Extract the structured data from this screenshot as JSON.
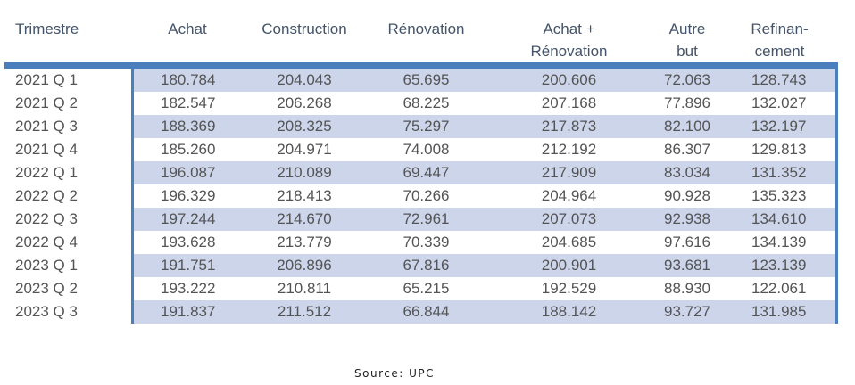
{
  "colors": {
    "accent": "#4A7EBC",
    "row_shade": "#CCD5EA",
    "header_text": "#44546A",
    "data_text": "#545454"
  },
  "table": {
    "headers": [
      {
        "line1": "Trimestre",
        "line2": ""
      },
      {
        "line1": "Achat",
        "line2": ""
      },
      {
        "line1": "Construction",
        "line2": ""
      },
      {
        "line1": "Rénovation",
        "line2": ""
      },
      {
        "line1": "Achat +",
        "line2": "Rénovation"
      },
      {
        "line1": "Autre",
        "line2": "but"
      },
      {
        "line1": "Refinan-",
        "line2": "cement"
      }
    ],
    "rows": [
      [
        "2021 Q 1",
        "180.784",
        "204.043",
        "65.695",
        "200.606",
        "72.063",
        "128.743"
      ],
      [
        "2021 Q 2",
        "182.547",
        "206.268",
        "68.225",
        "207.168",
        "77.896",
        "132.027"
      ],
      [
        "2021 Q 3",
        "188.369",
        "208.325",
        "75.297",
        "217.873",
        "82.100",
        "132.197"
      ],
      [
        "2021 Q 4",
        "185.260",
        "204.971",
        "74.008",
        "212.192",
        "86.307",
        "129.813"
      ],
      [
        "2022 Q 1",
        "196.087",
        "210.089",
        "69.447",
        "217.909",
        "83.034",
        "131.352"
      ],
      [
        "2022 Q 2",
        "196.329",
        "218.413",
        "70.266",
        "204.964",
        "90.928",
        "135.323"
      ],
      [
        "2022 Q 3",
        "197.244",
        "214.670",
        "72.961",
        "207.073",
        "92.938",
        "134.610"
      ],
      [
        "2022 Q 4",
        "193.628",
        "213.779",
        "70.339",
        "204.685",
        "97.616",
        "134.139"
      ],
      [
        "2023 Q 1",
        "191.751",
        "206.896",
        "67.816",
        "200.901",
        "93.681",
        "123.139"
      ],
      [
        "2023 Q 2",
        "193.222",
        "210.811",
        "65.215",
        "192.529",
        "88.930",
        "122.061"
      ],
      [
        "2023 Q 3",
        "191.837",
        "211.512",
        "66.844",
        "188.142",
        "93.727",
        "131.985"
      ]
    ]
  },
  "footer": {
    "source_label": "Source: UPC"
  },
  "chart_data": {
    "type": "table",
    "title": "",
    "categories": [
      "2021 Q 1",
      "2021 Q 2",
      "2021 Q 3",
      "2021 Q 4",
      "2022 Q 1",
      "2022 Q 2",
      "2022 Q 3",
      "2022 Q 4",
      "2023 Q 1",
      "2023 Q 2",
      "2023 Q 3"
    ],
    "series": [
      {
        "name": "Achat",
        "values": [
          180.784,
          182.547,
          188.369,
          185.26,
          196.087,
          196.329,
          197.244,
          193.628,
          191.751,
          193.222,
          191.837
        ]
      },
      {
        "name": "Construction",
        "values": [
          204.043,
          206.268,
          208.325,
          204.971,
          210.089,
          218.413,
          214.67,
          213.779,
          206.896,
          210.811,
          211.512
        ]
      },
      {
        "name": "Rénovation",
        "values": [
          65.695,
          68.225,
          75.297,
          74.008,
          69.447,
          70.266,
          72.961,
          70.339,
          67.816,
          65.215,
          66.844
        ]
      },
      {
        "name": "Achat + Rénovation",
        "values": [
          200.606,
          207.168,
          217.873,
          212.192,
          217.909,
          204.964,
          207.073,
          204.685,
          200.901,
          192.529,
          188.142
        ]
      },
      {
        "name": "Autre but",
        "values": [
          72.063,
          77.896,
          82.1,
          86.307,
          83.034,
          90.928,
          92.938,
          97.616,
          93.681,
          88.93,
          93.727
        ]
      },
      {
        "name": "Refinancement",
        "values": [
          128.743,
          132.027,
          132.197,
          129.813,
          131.352,
          135.323,
          134.61,
          134.139,
          123.139,
          122.061,
          131.985
        ]
      }
    ],
    "source": "Source: UPC",
    "layout": {
      "striped_rows": "odd rows shaded",
      "first_column_unshaded": true
    }
  }
}
